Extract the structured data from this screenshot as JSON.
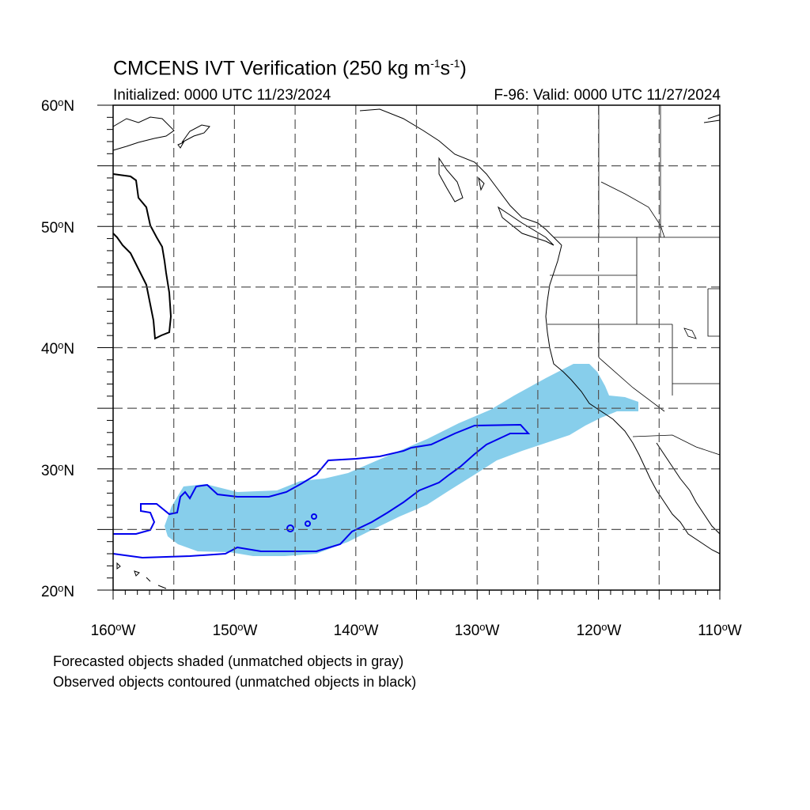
{
  "title": {
    "main": "CMCENS IVT Verification (250 kg m",
    "sup1": "-1",
    "mid": "s",
    "sup2": "-1",
    "end": ")"
  },
  "initialized": "Initialized: 0000 UTC 11/23/2024",
  "valid": "F-96: Valid: 0000 UTC 11/27/2024",
  "lat_labels": [
    {
      "num": "60",
      "hemi": "N"
    },
    {
      "num": "50",
      "hemi": "N"
    },
    {
      "num": "40",
      "hemi": "N"
    },
    {
      "num": "30",
      "hemi": "N"
    },
    {
      "num": "20",
      "hemi": "N"
    }
  ],
  "lon_labels": [
    {
      "num": "160",
      "hemi": "W"
    },
    {
      "num": "150",
      "hemi": "W"
    },
    {
      "num": "140",
      "hemi": "W"
    },
    {
      "num": "130",
      "hemi": "W"
    },
    {
      "num": "120",
      "hemi": "W"
    },
    {
      "num": "110",
      "hemi": "W"
    }
  ],
  "captions": {
    "forecast": "Forecasted objects shaded (unmatched objects in gray)",
    "observed": "Observed objects contoured (unmatched objects in black)"
  },
  "colors": {
    "forecast_fill": "#87ceeb",
    "observed_matched": "#0000ee",
    "observed_unmatched": "#000000",
    "grid": "#555555",
    "coast": "#000000"
  },
  "map_extent": {
    "lon": [
      -160,
      -110
    ],
    "lat": [
      20,
      60
    ]
  }
}
